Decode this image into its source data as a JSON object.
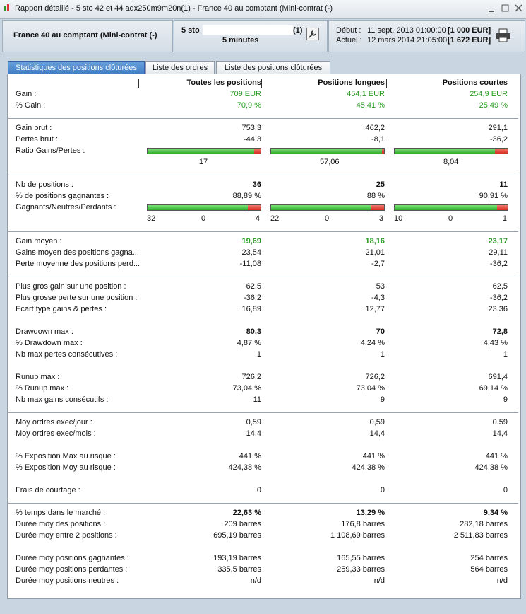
{
  "window": {
    "title": "Rapport détaillé - 5 sto 42 et 44 adx250m9m20n(1) - France 40 au comptant (Mini-contrat  (-)"
  },
  "header": {
    "instrument": "France 40 au comptant (Mini-contrat  (-)",
    "strategy": "5 sto",
    "strategy_suffix": "(1)",
    "timeframe": "5 minutes",
    "start_label": "Début :",
    "start_date": "11 sept. 2013 01:00:00",
    "start_capital": "[1 000 EUR]",
    "current_label": "Actuel :",
    "current_date": "12 mars 2014 21:05:00",
    "current_capital": "[1 672 EUR]"
  },
  "tabs": [
    "Statistiques des positions clôturées",
    "Liste des ordres",
    "Liste des positions clôturées"
  ],
  "table": {
    "header": [
      "Toutes les positions",
      "Positions longues",
      "Positions courtes"
    ],
    "sections": [
      [
        [
          {
            "label": "Gain :",
            "style": "green",
            "values": [
              "709 EUR",
              "454,1 EUR",
              "254,9 EUR"
            ]
          },
          {
            "label": "% Gain :",
            "style": "green",
            "values": [
              "70,9 %",
              "45,41 %",
              "25,49 %"
            ]
          }
        ]
      ],
      [
        [
          {
            "label": "Gain brut :",
            "values": [
              "753,3",
              "462,2",
              "291,1"
            ]
          },
          {
            "label": "Pertes brut :",
            "values": [
              "-44,3",
              "-8,1",
              "-36,2"
            ]
          },
          {
            "label": "Ratio Gains/Pertes :",
            "kind": "ratio",
            "values": [
              "17",
              "57,06",
              "8,04"
            ]
          }
        ]
      ],
      [
        [
          {
            "label": "Nb de positions :",
            "style": "bold",
            "values": [
              "36",
              "25",
              "11"
            ]
          },
          {
            "label": "% de positions gagnantes :",
            "values": [
              "88,89 %",
              "88 %",
              "90,91 %"
            ]
          },
          {
            "label": "Gagnants/Neutres/Perdants :",
            "kind": "counts",
            "values": [
              [
                32,
                0,
                4
              ],
              [
                22,
                0,
                3
              ],
              [
                10,
                0,
                1
              ]
            ]
          }
        ]
      ],
      [
        [
          {
            "label": "Gain moyen :",
            "style": "green-bold",
            "values": [
              "19,69",
              "18,16",
              "23,17"
            ]
          },
          {
            "label": "Gains moyen des positions gagna...",
            "values": [
              "23,54",
              "21,01",
              "29,11"
            ]
          },
          {
            "label": "Perte moyenne des positions perd...",
            "values": [
              "-11,08",
              "-2,7",
              "-36,2"
            ]
          }
        ]
      ],
      [
        [
          {
            "label": "Plus gros gain sur une position :",
            "values": [
              "62,5",
              "53",
              "62,5"
            ]
          },
          {
            "label": "Plus grosse perte sur une position :",
            "values": [
              "-36,2",
              "-4,3",
              "-36,2"
            ]
          },
          {
            "label": "Ecart type gains & pertes :",
            "values": [
              "16,89",
              "12,77",
              "23,36"
            ]
          }
        ],
        [
          {
            "label": "Drawdown max :",
            "style": "bold",
            "values": [
              "80,3",
              "70",
              "72,8"
            ]
          },
          {
            "label": "% Drawdown max :",
            "values": [
              "4,87 %",
              "4,24 %",
              "4,43 %"
            ]
          },
          {
            "label": "Nb max pertes consécutives :",
            "values": [
              "1",
              "1",
              "1"
            ]
          }
        ],
        [
          {
            "label": "Runup max :",
            "values": [
              "726,2",
              "726,2",
              "691,4"
            ]
          },
          {
            "label": "% Runup max :",
            "values": [
              "73,04 %",
              "73,04 %",
              "69,14 %"
            ]
          },
          {
            "label": "Nb max gains consécutifs :",
            "values": [
              "11",
              "9",
              "9"
            ]
          }
        ]
      ],
      [
        [
          {
            "label": "Moy ordres exec/jour :",
            "values": [
              "0,59",
              "0,59",
              "0,59"
            ]
          },
          {
            "label": "Moy ordres exec/mois :",
            "values": [
              "14,4",
              "14,4",
              "14,4"
            ]
          }
        ],
        [
          {
            "label": "% Exposition Max au risque :",
            "values": [
              "441 %",
              "441 %",
              "441 %"
            ]
          },
          {
            "label": "% Exposition Moy au risque :",
            "values": [
              "424,38 %",
              "424,38 %",
              "424,38 %"
            ]
          }
        ],
        [
          {
            "label": "Frais de courtage :",
            "values": [
              "0",
              "0",
              "0"
            ]
          }
        ]
      ],
      [
        [
          {
            "label": "% temps dans le marché :",
            "style": "bold",
            "values": [
              "22,63 %",
              "13,29 %",
              "9,34 %"
            ]
          },
          {
            "label": "Durée moy des positions :",
            "values": [
              "209 barres",
              "176,8 barres",
              "282,18 barres"
            ]
          },
          {
            "label": "Durée moy entre 2 positions :",
            "values": [
              "695,19 barres",
              "1 108,69 barres",
              "2 511,83 barres"
            ]
          }
        ],
        [
          {
            "label": "Durée moy positions gagnantes :",
            "values": [
              "193,19 barres",
              "165,55 barres",
              "254 barres"
            ]
          },
          {
            "label": "Durée moy positions perdantes :",
            "values": [
              "335,5 barres",
              "259,33 barres",
              "564 barres"
            ]
          },
          {
            "label": "Durée moy positions neutres :",
            "values": [
              "n/d",
              "n/d",
              "n/d"
            ]
          }
        ]
      ]
    ]
  }
}
